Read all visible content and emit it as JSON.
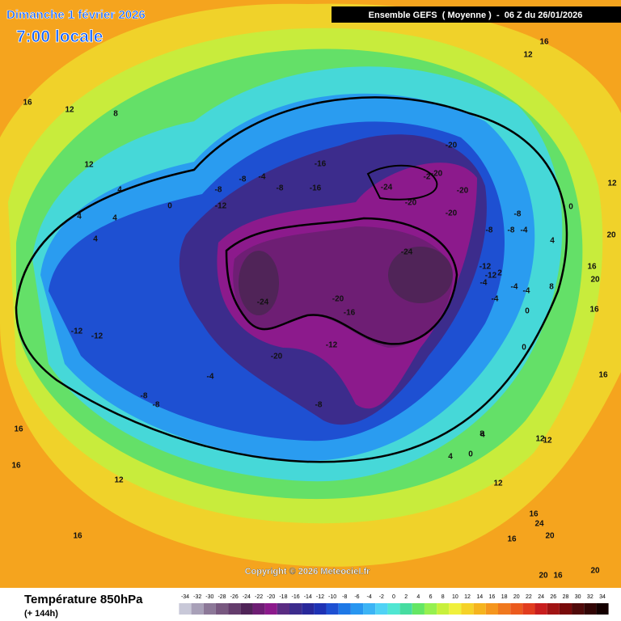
{
  "header": {
    "title": "Dimanche 1 février 2026",
    "subtitle": "7:00 locale",
    "run": "Ensemble GEFS  ( Moyenne )  -  06 Z du 26/01/2026"
  },
  "copyright": "Copyright © 2026 Meteociel.fr",
  "legend": {
    "title": "Température 850hPa",
    "lead": "(+ 144h)",
    "ticks": [
      -34,
      -32,
      -30,
      -28,
      -26,
      -24,
      -22,
      -20,
      -18,
      -16,
      -14,
      -12,
      -10,
      -8,
      -6,
      -4,
      -2,
      0,
      2,
      4,
      6,
      8,
      10,
      12,
      14,
      16,
      18,
      20,
      22,
      24,
      26,
      28,
      30,
      32,
      34
    ],
    "colors": [
      "#c8c8d8",
      "#a8a0b8",
      "#8c7898",
      "#785880",
      "#643c6c",
      "#502458",
      "#6e1e74",
      "#8c1a8c",
      "#5a2c82",
      "#3c2c8c",
      "#28289a",
      "#1e32b4",
      "#1e50d2",
      "#1e78e6",
      "#2896f0",
      "#3cb4f5",
      "#50d2f5",
      "#50e6d2",
      "#46dca0",
      "#64e664",
      "#96f050",
      "#c8f03c",
      "#f0f03c",
      "#f5d228",
      "#f5b41e",
      "#f5961e",
      "#f0781e",
      "#eb5a1e",
      "#e13c1e",
      "#c81e1e",
      "#a01414",
      "#780a0a",
      "#500a0a",
      "#320505",
      "#140000"
    ]
  },
  "contour_labels": [
    -20,
    -24,
    -2,
    -20,
    -20,
    -20,
    -20,
    -16,
    -16,
    -8,
    -8,
    -8,
    -4,
    -24,
    -24,
    -20,
    -16,
    -12,
    -20,
    -4,
    -8,
    -8,
    -8,
    -12,
    -12,
    2,
    -4,
    -4,
    -4,
    -4,
    0,
    0,
    -12,
    -12,
    -12,
    -8,
    -8,
    -4,
    -8,
    0,
    4,
    4,
    4,
    4,
    12,
    12,
    16,
    8,
    16,
    12,
    16,
    16,
    20,
    20,
    16,
    4,
    8,
    0,
    4,
    0,
    4,
    8,
    12,
    12,
    12,
    12,
    16,
    16,
    16,
    16,
    16,
    20,
    20,
    20,
    16,
    24,
    12
  ]
}
